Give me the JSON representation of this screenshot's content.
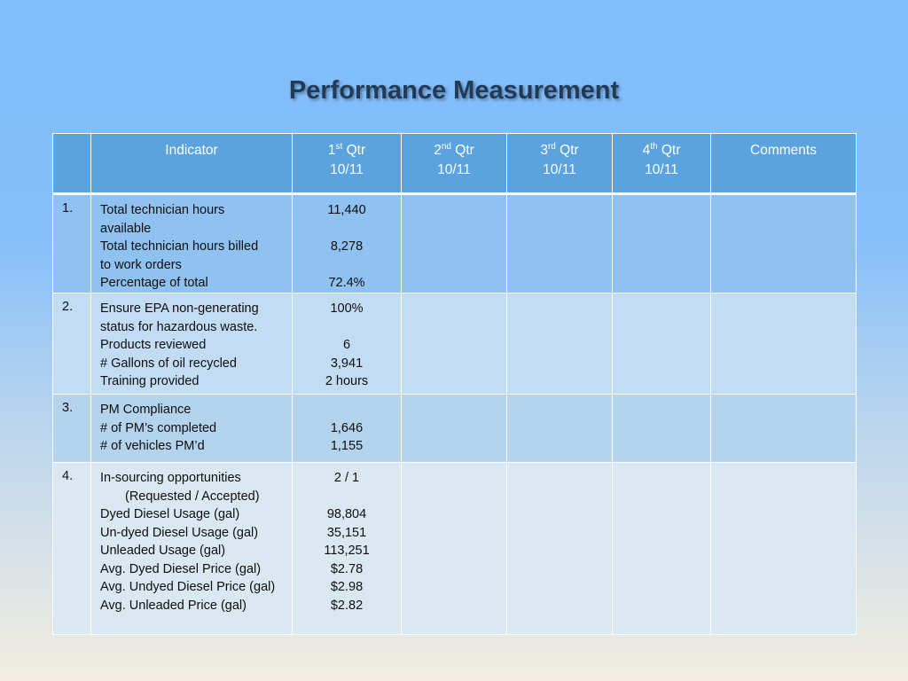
{
  "title": "Performance Measurement",
  "header": {
    "num": "",
    "indicator": "Indicator",
    "q1": {
      "n": "1",
      "sup": "st",
      "label": "Qtr",
      "year": "10/11"
    },
    "q2": {
      "n": "2",
      "sup": "nd",
      "label": "Qtr",
      "year": "10/11"
    },
    "q3": {
      "n": "3",
      "sup": "rd",
      "label": "Qtr",
      "year": "10/11"
    },
    "q4": {
      "n": "4",
      "sup": "th",
      "label": "Qtr",
      "year": "10/11"
    },
    "comments": "Comments"
  },
  "rows": [
    {
      "num": "1.",
      "indicator": [
        "Total technician hours",
        "available",
        "Total technician hours billed",
        "to work orders",
        "Percentage of total"
      ],
      "q1": [
        "11,440",
        "",
        "8,278",
        "",
        "72.4%"
      ]
    },
    {
      "num": "2.",
      "indicator": [
        "Ensure EPA non-generating",
        "status for hazardous waste.",
        "Products reviewed",
        "# Gallons of oil recycled",
        "Training provided"
      ],
      "q1": [
        "100%",
        "",
        "6",
        "3,941",
        "2 hours"
      ]
    },
    {
      "num": "3.",
      "indicator": [
        "PM Compliance",
        "# of PM’s completed",
        "# of vehicles PM’d"
      ],
      "q1": [
        "",
        "1,646",
        "1,155"
      ]
    },
    {
      "num": "4.",
      "indicator": [
        "In-sourcing opportunities",
        "(Requested / Accepted)",
        "Dyed Diesel Usage (gal)",
        "Un-dyed Diesel Usage (gal)",
        "Unleaded Usage (gal)",
        "Avg. Dyed Diesel Price (gal)",
        "Avg. Undyed Diesel Price (gal)",
        "Avg. Unleaded Price (gal)"
      ],
      "q1": [
        "2 / 1",
        "",
        "98,804",
        "35,151",
        "113,251",
        "$2.78",
        "$2.98",
        "$2.82"
      ]
    }
  ]
}
